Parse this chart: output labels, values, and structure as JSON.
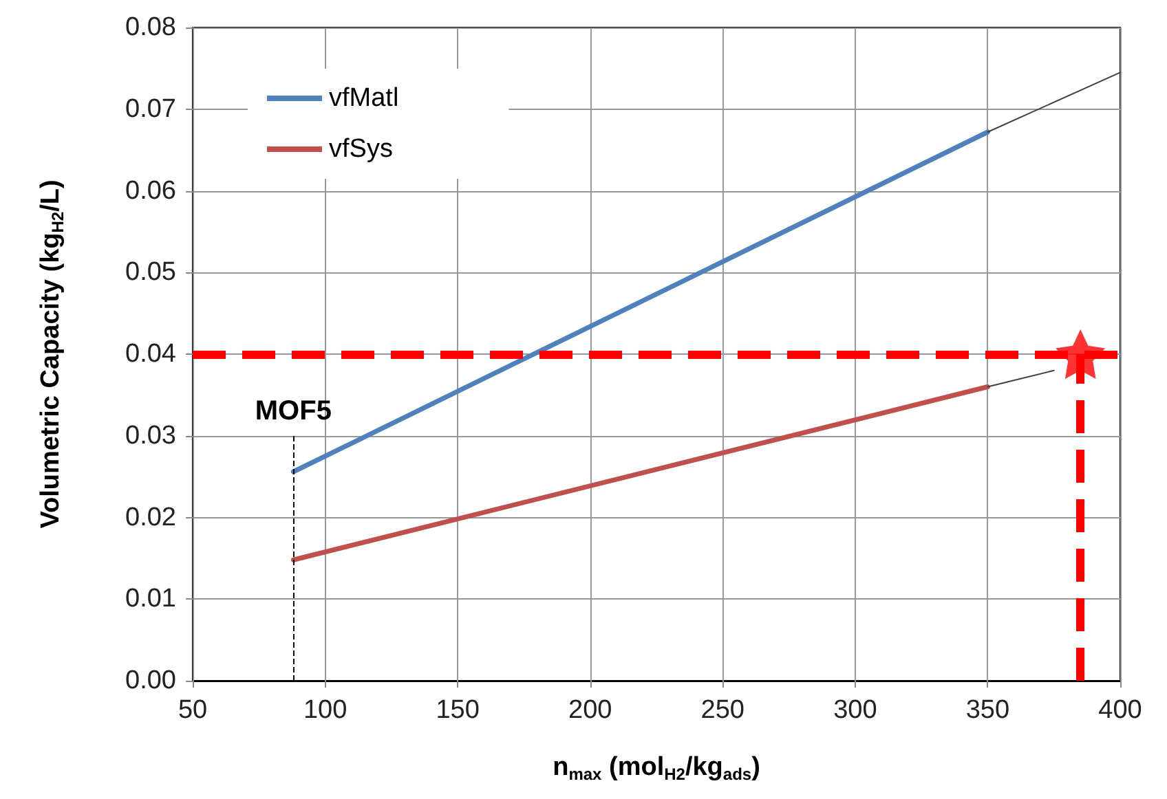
{
  "chart_data": {
    "type": "line",
    "xlabel": "n$_{max}$ (mol$_{H2}$/kg$_{ads}$)",
    "ylabel": "Volumetric Capacity (kg$_{H2}$/L)",
    "xlim": [
      50,
      400
    ],
    "xticks": [
      50,
      100,
      150,
      200,
      250,
      300,
      350,
      400
    ],
    "ylim": [
      0,
      0.08
    ],
    "yticks": [
      {
        "value": 0,
        "label": "0.00"
      },
      {
        "value": 0.01,
        "label": "0.01"
      },
      {
        "value": 0.02,
        "label": "0.02"
      },
      {
        "value": 0.03,
        "label": "0.03"
      },
      {
        "value": 0.04,
        "label": "0.04"
      },
      {
        "value": 0.05,
        "label": "0.05"
      },
      {
        "value": 0.06,
        "label": "0.06"
      },
      {
        "value": 0.07,
        "label": "0.07"
      },
      {
        "value": 0.08,
        "label": "0.08"
      }
    ],
    "grid": true,
    "legend": "top left",
    "marker": "none",
    "series": [
      {
        "name": "vfMatl",
        "color": "#4f81bd",
        "x": [
          88,
          350
        ],
        "values": [
          0.0256,
          0.0672
        ]
      },
      {
        "name": "vfSys",
        "color": "#c0504d",
        "x": [
          88,
          350
        ],
        "values": [
          0.0148,
          0.036
        ]
      },
      {
        "color": "#404040",
        "x": [
          350,
          400
        ],
        "values": [
          0.0672,
          0.0745
        ]
      },
      {
        "color": "#404040",
        "x": [
          350,
          375
        ],
        "values": [
          0.036,
          0.038
        ]
      },
      {
        "type": "scatter",
        "marker": "star",
        "color": "#ff0000",
        "x": [
          385
        ],
        "values": [
          0.04
        ]
      }
    ],
    "ref_lines": [
      {
        "axis": "y",
        "value": 0.04,
        "color": "#ff0000",
        "line_style": "dashed"
      },
      {
        "axis": "x",
        "value": 385,
        "color": "#ff0000",
        "line_style": "dashed"
      },
      {
        "axis": "x",
        "value": 88,
        "label": "MOF5",
        "color": "#000000",
        "line_style": "dashed"
      }
    ]
  }
}
